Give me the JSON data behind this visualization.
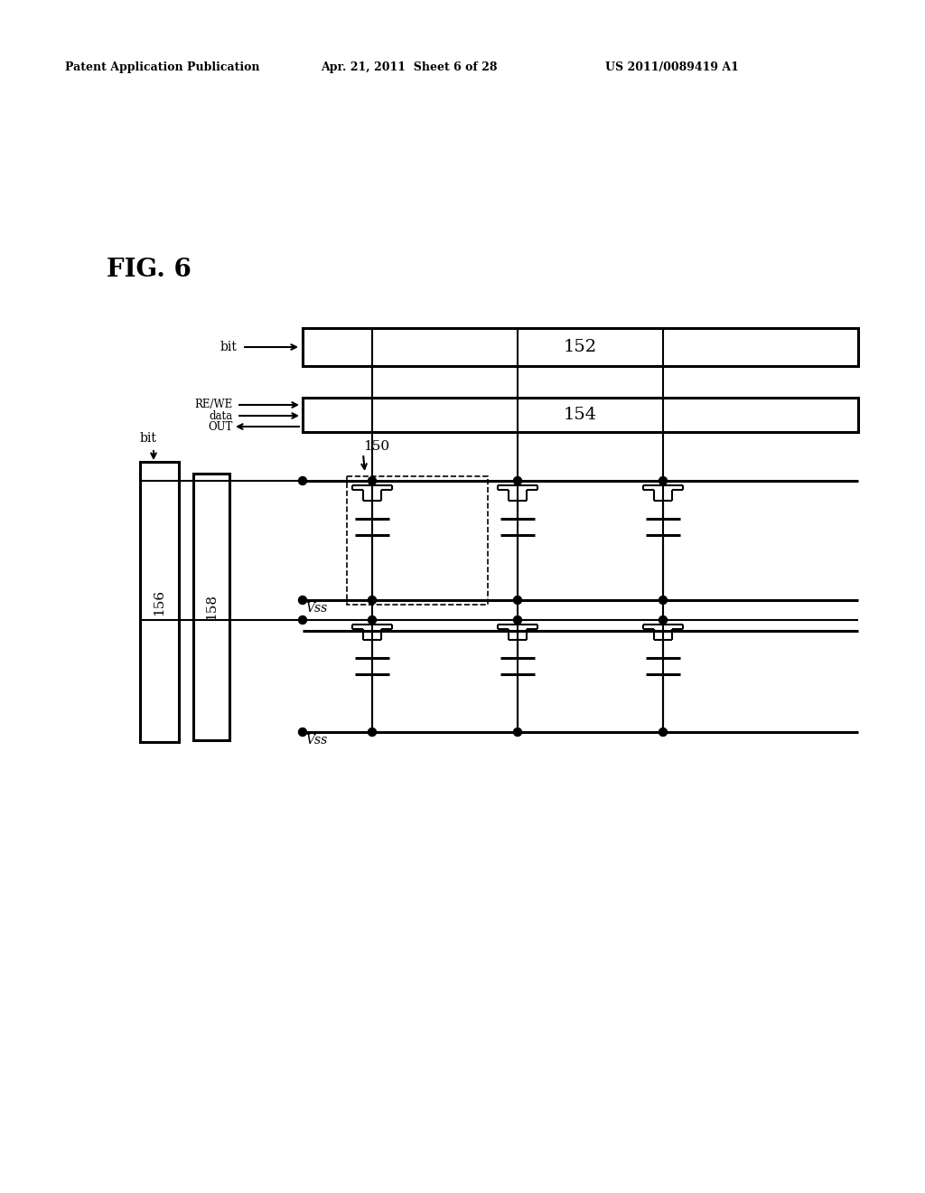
{
  "header_left": "Patent Application Publication",
  "header_center": "Apr. 21, 2011  Sheet 6 of 28",
  "header_right": "US 2011/0089419 A1",
  "bg_color": "#ffffff",
  "fig_label": "FIG. 6",
  "lw": 1.5,
  "lw_thick": 2.2,
  "dot_r": 4.5,
  "box152_label": "152",
  "box154_label": "154",
  "bar156_label": "156",
  "bar158_label": "158",
  "label_150": "150",
  "vss_label": "Vss"
}
